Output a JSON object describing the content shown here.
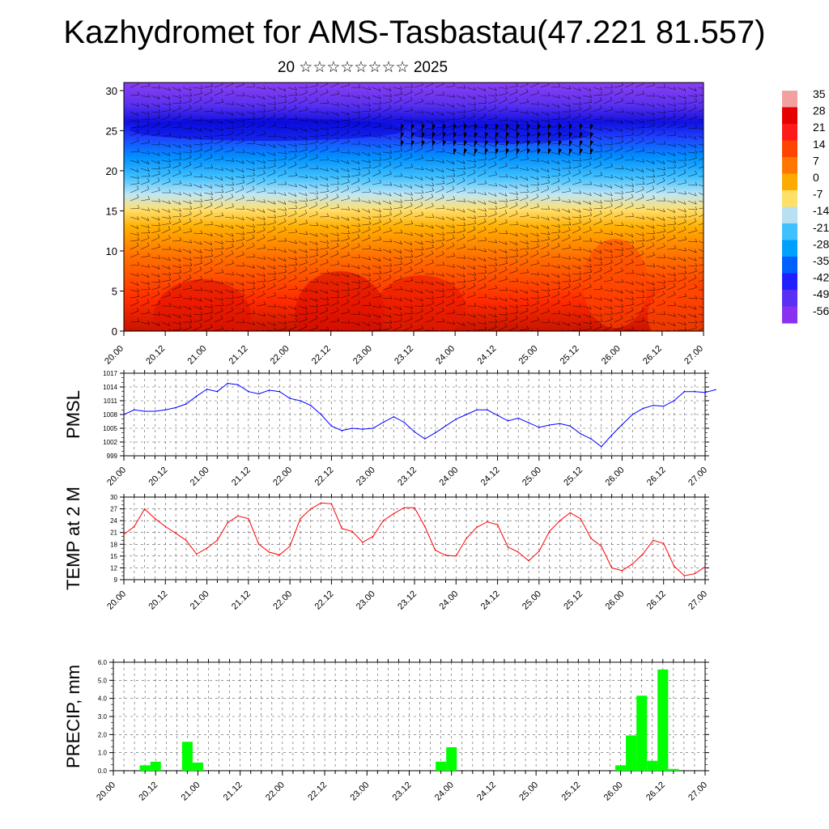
{
  "page": {
    "title": "Kazhydromet for AMS-Tasbastau(47.221 81.557)",
    "subtitle": "20 ☆☆☆☆☆☆☆☆ 2025"
  },
  "colors": {
    "pmsl": "#0000ff",
    "temp": "#ff0000",
    "precip": "#00ff00",
    "barbs": "#000000"
  },
  "chart_data": [
    {
      "type": "heatmap",
      "name": "cross-section",
      "x_ticks": [
        "20.00",
        "20.12",
        "21.00",
        "21.12",
        "22.00",
        "22.12",
        "23.00",
        "23.12",
        "24.00",
        "24.12",
        "25.00",
        "25.12",
        "26.00",
        "26.12",
        "27.00"
      ],
      "y_ticks": [
        0,
        5,
        10,
        15,
        20,
        25,
        30
      ],
      "ylim": [
        0,
        31
      ],
      "colorbar_labels": [
        "35",
        "28",
        "21",
        "14",
        "7",
        "0",
        "-7",
        "-14",
        "-21",
        "-28",
        "-35",
        "-42",
        "-49",
        "-56"
      ],
      "colorbar_colors": [
        "#f2a0a0",
        "#e60000",
        "#ff1a1a",
        "#ff4400",
        "#ff7700",
        "#ffaa00",
        "#ffe066",
        "#b7e0f0",
        "#40c0ff",
        "#00a0ff",
        "#0060ff",
        "#2020ff",
        "#5a30f5",
        "#8a30f0"
      ]
    },
    {
      "type": "line",
      "name": "PMSL",
      "ylabel": "PMSL",
      "x_ticks": [
        "20.00",
        "20.12",
        "21.00",
        "21.12",
        "22.00",
        "22.12",
        "23.00",
        "23.12",
        "24.00",
        "24.12",
        "25.00",
        "25.12",
        "26.00",
        "26.12",
        "27.00"
      ],
      "y_ticks": [
        999,
        1002,
        1005,
        1008,
        1011,
        1014,
        1017
      ],
      "ylim": [
        999,
        1017
      ],
      "xlim": [
        0,
        56
      ],
      "values": [
        1008,
        1009,
        1008.7,
        1008.7,
        1009,
        1009.5,
        1010.3,
        1012,
        1013.5,
        1013,
        1014.8,
        1014.5,
        1013,
        1012.5,
        1013.3,
        1013,
        1011.5,
        1011,
        1010,
        1008,
        1005.5,
        1004.5,
        1005,
        1004.8,
        1005,
        1006.3,
        1007.5,
        1006.3,
        1004.2,
        1002.7,
        1004,
        1005.5,
        1007,
        1008,
        1009,
        1009,
        1007.8,
        1006.6,
        1007.2,
        1006.2,
        1005.2,
        1005.7,
        1006,
        1005.5,
        1003.8,
        1002.7,
        1001,
        1003.5,
        1005.8,
        1008,
        1009.3,
        1010,
        1009.8,
        1011,
        1013,
        1013,
        1012.8,
        1013.4
      ]
    },
    {
      "type": "line",
      "name": "TEMP",
      "ylabel": "TEMP at 2 M",
      "x_ticks": [
        "20.00",
        "20.12",
        "21.00",
        "21.12",
        "22.00",
        "22.12",
        "23.00",
        "23.12",
        "24.00",
        "24.12",
        "25.00",
        "25.12",
        "26.00",
        "26.12",
        "27.00"
      ],
      "y_ticks": [
        9,
        12,
        15,
        18,
        21,
        24,
        27,
        30
      ],
      "ylim": [
        9,
        30
      ],
      "xlim": [
        0,
        56
      ],
      "values": [
        20.5,
        22.5,
        27,
        24.5,
        22.5,
        20.8,
        19,
        15.5,
        17,
        19,
        23.5,
        25.2,
        24.5,
        18,
        16,
        15.3,
        17.5,
        24.5,
        27,
        28.5,
        28.3,
        22,
        21.3,
        18.5,
        20,
        24,
        25.8,
        27.3,
        27.3,
        22.5,
        16.5,
        15.2,
        15,
        19.5,
        22.3,
        23.7,
        23,
        17.3,
        16,
        13.8,
        16.2,
        21.3,
        24,
        26,
        24.5,
        19.5,
        17.5,
        12,
        11.3,
        13,
        15.5,
        19,
        18.2,
        12.5,
        10,
        10.5,
        12.3
      ]
    },
    {
      "type": "bar",
      "name": "PRECIP",
      "ylabel": "PRECIP, mm",
      "x_ticks": [
        "20.00",
        "20.12",
        "21.00",
        "21.12",
        "22.00",
        "22.12",
        "23.00",
        "23.12",
        "24.00",
        "24.12",
        "25.00",
        "25.12",
        "26.00",
        "26.12",
        "27.00"
      ],
      "y_ticks": [
        "0.0",
        "1.0",
        "2.0",
        "3.0",
        "4.0",
        "5.0",
        "6.0"
      ],
      "ylim": [
        0,
        6
      ],
      "xlim": [
        0,
        56
      ],
      "values": [
        0,
        0,
        0,
        0.3,
        0.5,
        0,
        0,
        1.6,
        0.45,
        0,
        0,
        0,
        0,
        0,
        0,
        0,
        0,
        0,
        0,
        0,
        0,
        0,
        0,
        0,
        0,
        0,
        0,
        0,
        0,
        0,
        0,
        0.5,
        1.3,
        0,
        0,
        0,
        0,
        0,
        0,
        0,
        0,
        0,
        0,
        0,
        0,
        0,
        0,
        0,
        0.3,
        1.95,
        4.15,
        0.55,
        5.6,
        0.1,
        0,
        0,
        0
      ]
    }
  ]
}
